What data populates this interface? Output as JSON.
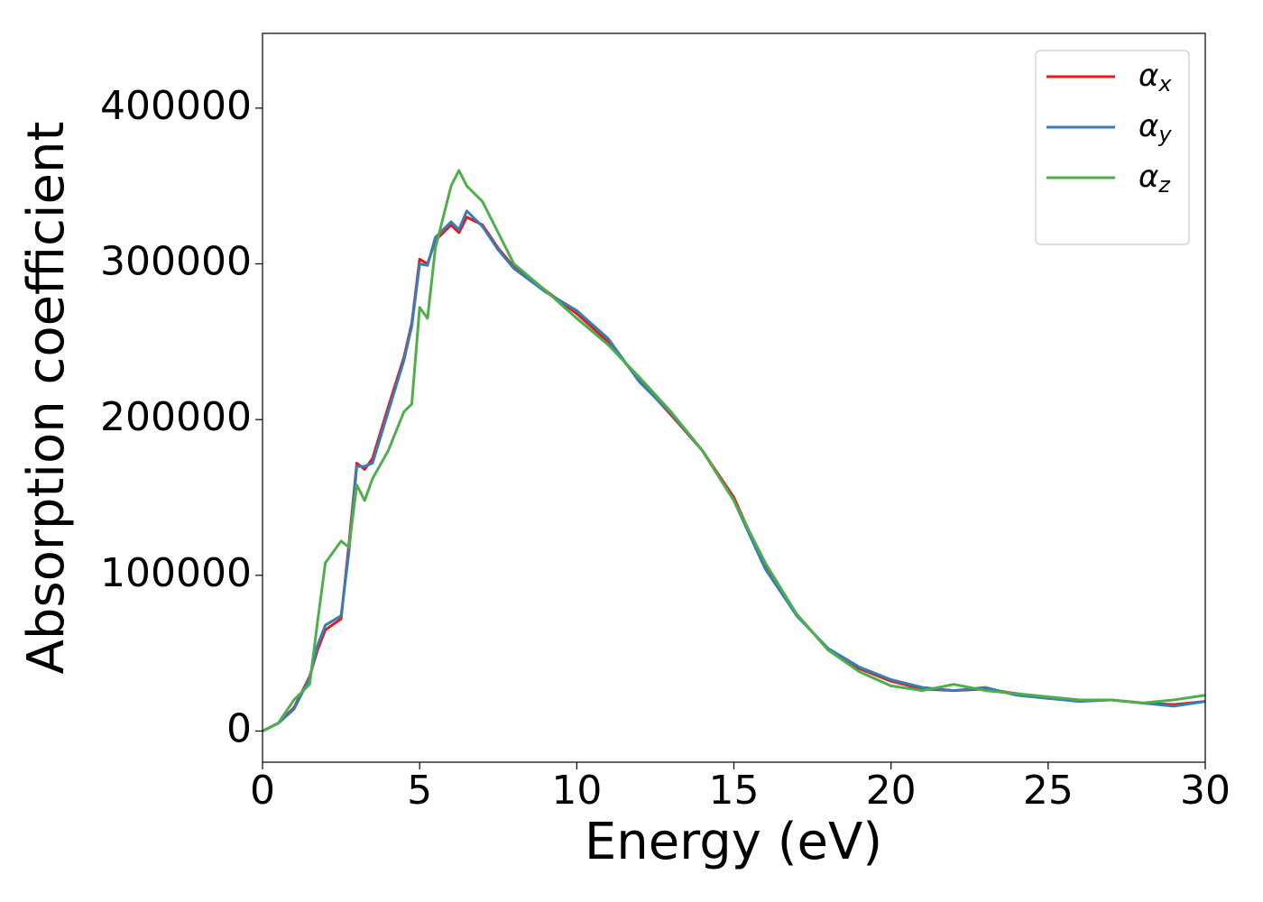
{
  "chart_data": {
    "type": "line",
    "xlabel": "Energy (eV)",
    "ylabel": "Absorption coefficient",
    "x": [
      0,
      0.5,
      1,
      1.5,
      1.75,
      2,
      2.5,
      2.75,
      3,
      3.25,
      3.5,
      4,
      4.5,
      4.75,
      5,
      5.25,
      5.5,
      6,
      6.25,
      6.5,
      7,
      7.5,
      8,
      9,
      10,
      11,
      12,
      13,
      14,
      15,
      16,
      17,
      18,
      19,
      20,
      21,
      22,
      23,
      24,
      25,
      26,
      27,
      28,
      29,
      30
    ],
    "series": [
      {
        "name": "αx",
        "color": "#e41a1c",
        "values": [
          0,
          5000,
          15000,
          35000,
          52000,
          65000,
          72000,
          120000,
          172000,
          168000,
          175000,
          208000,
          240000,
          262000,
          303000,
          300000,
          315000,
          325000,
          320000,
          330000,
          325000,
          310000,
          298000,
          283000,
          268000,
          250000,
          225000,
          203000,
          180000,
          150000,
          105000,
          75000,
          52000,
          40000,
          32000,
          27000,
          26000,
          27000,
          24000,
          21000,
          20000,
          20000,
          18000,
          17000,
          19000
        ]
      },
      {
        "name": "αy",
        "color": "#377eb8",
        "values": [
          0,
          5000,
          14000,
          34000,
          55000,
          68000,
          74000,
          115000,
          170000,
          170000,
          172000,
          205000,
          238000,
          260000,
          300000,
          299000,
          317000,
          327000,
          322000,
          334000,
          324000,
          309000,
          297000,
          282000,
          270000,
          252000,
          224000,
          204000,
          180000,
          148000,
          104000,
          74000,
          53000,
          41000,
          33000,
          28000,
          26000,
          28000,
          23000,
          21000,
          19000,
          20000,
          18000,
          16000,
          19000
        ]
      },
      {
        "name": "αz",
        "color": "#4daf4a",
        "values": [
          0,
          5000,
          20000,
          30000,
          70000,
          108000,
          122000,
          118000,
          158000,
          148000,
          162000,
          180000,
          205000,
          210000,
          272000,
          265000,
          310000,
          350000,
          360000,
          350000,
          340000,
          320000,
          300000,
          283000,
          265000,
          248000,
          227000,
          205000,
          180000,
          148000,
          108000,
          75000,
          52000,
          38000,
          29000,
          26000,
          30000,
          26000,
          24000,
          22000,
          20000,
          20000,
          18000,
          20000,
          23000
        ]
      }
    ],
    "xlim": [
      0,
      30
    ],
    "xticks": [
      0,
      5,
      10,
      15,
      20,
      25,
      30
    ],
    "ylim": [
      -20000,
      448000
    ],
    "yticks": [
      0,
      100000,
      200000,
      300000,
      400000
    ],
    "grid": false,
    "legend": "upper right"
  }
}
